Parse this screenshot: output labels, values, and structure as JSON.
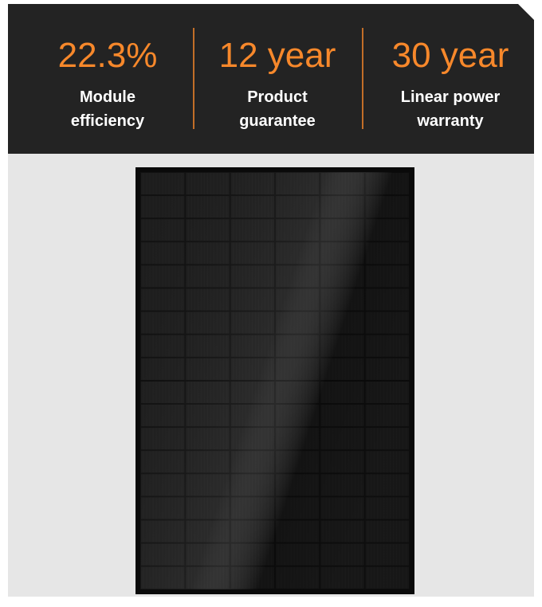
{
  "stats": [
    {
      "value": "22.3%",
      "label_lines": [
        "Module",
        "efficiency"
      ]
    },
    {
      "value": "12 year",
      "label_lines": [
        "Product",
        "guarantee"
      ]
    },
    {
      "value": "30 year",
      "label_lines": [
        "Linear power",
        "warranty"
      ]
    }
  ]
}
